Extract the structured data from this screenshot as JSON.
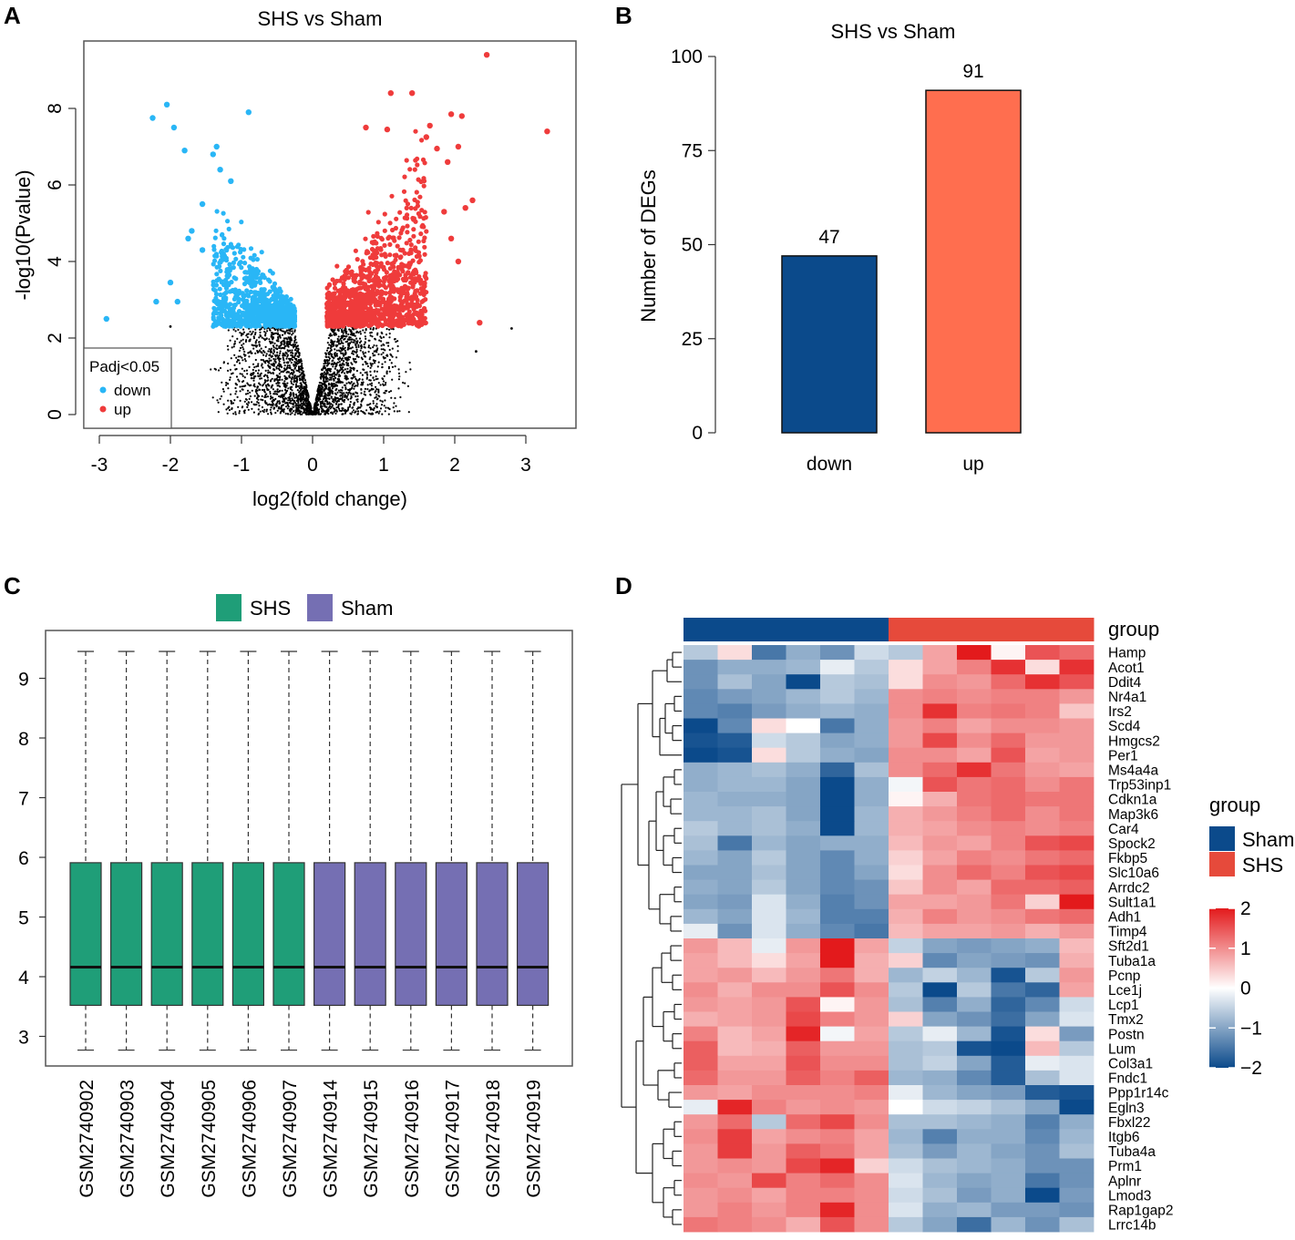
{
  "panels": {
    "A": "A",
    "B": "B",
    "C": "C",
    "D": "D"
  },
  "chart_data": [
    {
      "id": "A",
      "type": "scatter",
      "title": "SHS vs Sham",
      "xlabel": "log2(fold change)",
      "ylabel": "-log10(Pvalue)",
      "xlim": [
        -3.3,
        3.6
      ],
      "ylim": [
        -0.3,
        9.6
      ],
      "xticks": [
        -3,
        -2,
        -1,
        0,
        1,
        2,
        3
      ],
      "yticks": [
        0,
        2,
        4,
        6,
        8
      ],
      "legend": {
        "title": "Padj<0.05",
        "placement": "bottom-left",
        "entries": [
          {
            "label": "down",
            "color": "#29b6f6"
          },
          {
            "label": "up",
            "color": "#ef3b3b"
          }
        ]
      },
      "series": [
        {
          "name": "down",
          "color": "#29b6f6",
          "points": [
            [
              -2.9,
              2.5
            ],
            [
              -2.2,
              2.95
            ],
            [
              -1.9,
              2.95
            ],
            [
              -2.0,
              3.45
            ],
            [
              -2.25,
              7.75
            ],
            [
              -2.05,
              8.1
            ],
            [
              -1.95,
              7.5
            ],
            [
              -1.8,
              6.9
            ],
            [
              -1.55,
              5.5
            ],
            [
              -0.9,
              7.9
            ],
            [
              -1.35,
              7.0
            ],
            [
              -1.3,
              6.4
            ],
            [
              -1.15,
              6.1
            ],
            [
              -1.4,
              6.8
            ],
            [
              -1.7,
              4.8
            ],
            [
              -1.75,
              4.6
            ],
            [
              -1.55,
              4.3
            ]
          ]
        },
        {
          "name": "up",
          "color": "#ef3b3b",
          "points": [
            [
              2.45,
              9.4
            ],
            [
              3.3,
              7.4
            ],
            [
              1.1,
              8.4
            ],
            [
              1.4,
              8.4
            ],
            [
              1.95,
              7.85
            ],
            [
              2.1,
              7.8
            ],
            [
              2.05,
              7.0
            ],
            [
              0.75,
              7.5
            ],
            [
              1.05,
              7.45
            ],
            [
              1.65,
              7.55
            ],
            [
              1.6,
              7.25
            ],
            [
              1.75,
              6.95
            ],
            [
              1.9,
              6.6
            ],
            [
              2.25,
              5.6
            ],
            [
              2.15,
              5.4
            ],
            [
              1.85,
              5.3
            ],
            [
              2.05,
              4.0
            ],
            [
              1.95,
              4.6
            ],
            [
              2.35,
              2.4
            ],
            [
              1.5,
              2.4
            ]
          ]
        },
        {
          "name": "ns",
          "color": "#000000",
          "points": [
            [
              -2.0,
              2.3
            ],
            [
              2.8,
              2.25
            ],
            [
              2.3,
              1.65
            ]
          ]
        }
      ]
    },
    {
      "id": "B",
      "type": "bar",
      "title": "SHS vs Sham",
      "xlabel": "",
      "ylabel": "Number of DEGs",
      "categories": [
        "down",
        "up"
      ],
      "values": [
        47,
        91
      ],
      "value_labels": [
        "47",
        "91"
      ],
      "colors": [
        "#0b4a8b",
        "#ff6e4f"
      ],
      "ylim": [
        0,
        100
      ],
      "yticks": [
        0,
        25,
        50,
        75,
        100
      ]
    },
    {
      "id": "C",
      "type": "boxplot",
      "title": "",
      "legend": [
        {
          "label": "SHS",
          "color": "#1f9e78"
        },
        {
          "label": "Sham",
          "color": "#756fb3"
        }
      ],
      "ylim": [
        2.8,
        9.7
      ],
      "yticks": [
        3,
        4,
        5,
        6,
        7,
        8,
        9
      ],
      "samples": [
        "GSM2740902",
        "GSM2740903",
        "GSM2740904",
        "GSM2740905",
        "GSM2740906",
        "GSM2740907",
        "GSM2740914",
        "GSM2740915",
        "GSM2740916",
        "GSM2740917",
        "GSM2740918",
        "GSM2740919"
      ],
      "groups": [
        "SHS",
        "SHS",
        "SHS",
        "SHS",
        "SHS",
        "SHS",
        "Sham",
        "Sham",
        "Sham",
        "Sham",
        "Sham",
        "Sham"
      ],
      "stats": {
        "min": 2.77,
        "q1": 3.52,
        "median": 4.16,
        "q3": 5.91,
        "max": 9.45
      }
    },
    {
      "id": "D",
      "type": "heatmap",
      "annotation_title": "group",
      "legend_title": "group",
      "group_legend": [
        {
          "label": "Sham",
          "color": "#0b4a8b"
        },
        {
          "label": "SHS",
          "color": "#e64a3b"
        }
      ],
      "column_groups": [
        "Sham",
        "Sham",
        "Sham",
        "Sham",
        "Sham",
        "Sham",
        "SHS",
        "SHS",
        "SHS",
        "SHS",
        "SHS",
        "SHS"
      ],
      "colorbar_ticks": [
        2,
        1,
        0,
        -1,
        -2
      ],
      "colorbar_labels": [
        "2",
        "1",
        "0",
        "−1",
        "−2"
      ],
      "genes": [
        "Hamp",
        "Acot1",
        "Ddit4",
        "Nr4a1",
        "Irs2",
        "Scd4",
        "Hmgcs2",
        "Per1",
        "Ms4a4a",
        "Trp53inp1",
        "Cdkn1a",
        "Map3k6",
        "Car4",
        "Spock2",
        "Fkbp5",
        "Slc10a6",
        "Arrdc2",
        "Sult1a1",
        "Adh1",
        "Timp4",
        "Sft2d1",
        "Tuba1a",
        "Pcnp",
        "Lce1j",
        "Lcp1",
        "Tmx2",
        "Postn",
        "Lum",
        "Col3a1",
        "Fndc1",
        "Ppp1r14c",
        "Egln3",
        "Fbxl22",
        "Itgb6",
        "Tuba4a",
        "Prm1",
        "Aplnr",
        "Lmod3",
        "Rap1gap2",
        "Lrrc14b"
      ],
      "values": [
        [
          -0.6,
          0.3,
          -1.5,
          -0.9,
          -1.2,
          -0.4,
          -0.6,
          0.8,
          2.0,
          0.1,
          1.5,
          1.3
        ],
        [
          -1.2,
          -0.9,
          -0.9,
          -0.8,
          -0.2,
          -0.6,
          0.3,
          0.8,
          1.1,
          1.8,
          0.3,
          1.8
        ],
        [
          -1.2,
          -0.7,
          -1.0,
          -2.0,
          -0.6,
          -0.7,
          0.3,
          1.0,
          0.9,
          1.3,
          1.8,
          1.5
        ],
        [
          -1.3,
          -1.1,
          -1.0,
          -0.8,
          -0.6,
          -0.8,
          1.0,
          1.1,
          1.0,
          1.1,
          1.1,
          0.9
        ],
        [
          -1.3,
          -1.4,
          -1.1,
          -0.9,
          -0.8,
          -0.9,
          1.0,
          1.8,
          1.1,
          1.2,
          1.1,
          0.5
        ],
        [
          -2.0,
          -1.3,
          0.3,
          0.0,
          -1.5,
          -0.9,
          0.9,
          1.1,
          0.8,
          1.0,
          1.0,
          0.9
        ],
        [
          -1.9,
          -1.8,
          -0.4,
          -0.6,
          -1.0,
          -0.9,
          0.9,
          1.6,
          1.0,
          1.3,
          0.9,
          0.9
        ],
        [
          -2.0,
          -1.9,
          0.3,
          -0.6,
          -0.9,
          -1.0,
          1.0,
          1.0,
          0.8,
          1.5,
          0.8,
          0.9
        ],
        [
          -0.9,
          -0.8,
          -0.7,
          -0.9,
          -1.7,
          -0.7,
          1.0,
          1.3,
          1.8,
          1.2,
          0.9,
          0.8
        ],
        [
          -0.9,
          -0.8,
          -0.8,
          -1.0,
          -2.0,
          -0.9,
          -0.1,
          1.5,
          1.2,
          1.3,
          1.0,
          1.2
        ],
        [
          -0.8,
          -0.9,
          -0.9,
          -1.0,
          -2.0,
          -0.9,
          0.1,
          0.7,
          1.2,
          1.3,
          1.2,
          1.2
        ],
        [
          -0.8,
          -0.8,
          -0.7,
          -1.0,
          -2.0,
          -0.8,
          0.7,
          0.9,
          1.1,
          1.3,
          1.0,
          1.2
        ],
        [
          -0.6,
          -0.8,
          -0.7,
          -0.9,
          -2.0,
          -0.8,
          0.7,
          0.8,
          1.0,
          1.1,
          1.0,
          1.1
        ],
        [
          -0.7,
          -1.5,
          -0.8,
          -1.0,
          -0.9,
          -0.9,
          0.6,
          0.9,
          0.8,
          1.1,
          1.5,
          1.6
        ],
        [
          -0.8,
          -1.0,
          -0.6,
          -1.0,
          -1.3,
          -0.9,
          0.4,
          0.8,
          1.1,
          1.0,
          1.2,
          1.3
        ],
        [
          -1.0,
          -1.0,
          -0.7,
          -1.0,
          -1.3,
          -1.0,
          0.3,
          1.0,
          1.3,
          1.1,
          1.5,
          1.6
        ],
        [
          -0.9,
          -1.0,
          -0.6,
          -1.0,
          -1.3,
          -1.2,
          0.5,
          1.0,
          0.8,
          1.3,
          1.3,
          1.4
        ],
        [
          -1.0,
          -1.1,
          -0.3,
          -0.9,
          -1.4,
          -1.2,
          0.8,
          0.8,
          0.9,
          1.2,
          0.4,
          2.0
        ],
        [
          -0.8,
          -1.0,
          -0.3,
          -0.8,
          -1.4,
          -1.4,
          0.7,
          1.1,
          0.9,
          1.0,
          1.2,
          1.3
        ],
        [
          -0.2,
          -1.2,
          -0.3,
          -0.9,
          -1.3,
          -1.5,
          0.6,
          0.8,
          0.8,
          0.9,
          0.7,
          0.9
        ],
        [
          0.9,
          0.6,
          -0.2,
          0.9,
          2.0,
          0.8,
          -0.5,
          -1.0,
          -1.1,
          -1.0,
          -0.9,
          0.6
        ],
        [
          0.8,
          0.6,
          0.3,
          0.8,
          2.0,
          0.7,
          0.4,
          -1.3,
          -1.0,
          -1.1,
          -1.2,
          0.7
        ],
        [
          0.8,
          0.9,
          0.6,
          0.9,
          1.2,
          0.7,
          -0.8,
          -0.5,
          -0.8,
          -1.9,
          -0.6,
          0.9
        ],
        [
          1.0,
          0.7,
          1.0,
          1.0,
          1.5,
          1.0,
          -0.6,
          -2.0,
          -0.6,
          -1.5,
          -1.7,
          0.8
        ],
        [
          0.9,
          0.8,
          0.9,
          1.5,
          0.1,
          0.9,
          -0.7,
          -1.4,
          -0.9,
          -1.7,
          -1.3,
          -0.4
        ],
        [
          0.7,
          0.8,
          0.9,
          1.6,
          1.1,
          0.9,
          0.4,
          -1.0,
          -1.2,
          -1.6,
          -1.0,
          -0.3
        ],
        [
          1.1,
          0.6,
          0.8,
          1.9,
          -0.1,
          0.8,
          -0.6,
          -0.2,
          -0.8,
          -1.9,
          0.3,
          -1.1
        ],
        [
          1.4,
          0.6,
          0.7,
          1.4,
          0.9,
          0.9,
          -0.7,
          -0.6,
          -1.9,
          -2.0,
          0.6,
          -0.6
        ],
        [
          1.4,
          0.8,
          0.8,
          1.5,
          1.0,
          1.0,
          -0.7,
          -0.5,
          -1.0,
          -1.8,
          -0.2,
          -0.3
        ],
        [
          1.3,
          0.9,
          0.9,
          1.4,
          1.1,
          1.4,
          -0.8,
          -0.9,
          -1.3,
          -1.8,
          -0.7,
          -0.3
        ],
        [
          0.9,
          0.8,
          1.0,
          1.0,
          1.0,
          1.1,
          -0.2,
          -0.8,
          -1.0,
          -1.1,
          -1.8,
          -1.9
        ],
        [
          -0.2,
          1.9,
          1.1,
          0.9,
          1.0,
          0.9,
          0.0,
          -0.4,
          -0.5,
          -0.7,
          -1.0,
          -2.0
        ],
        [
          0.9,
          1.3,
          -0.6,
          1.3,
          1.6,
          1.0,
          -0.7,
          -0.7,
          -0.8,
          -0.9,
          -1.4,
          -0.9
        ],
        [
          1.0,
          1.7,
          0.8,
          1.0,
          1.1,
          0.8,
          -0.8,
          -1.4,
          -0.9,
          -0.9,
          -1.3,
          -0.8
        ],
        [
          0.9,
          1.7,
          0.9,
          1.4,
          1.2,
          0.8,
          -0.7,
          -1.1,
          -0.8,
          -1.0,
          -1.2,
          -0.7
        ],
        [
          0.9,
          1.0,
          0.9,
          1.6,
          1.9,
          0.4,
          -0.4,
          -0.7,
          -0.8,
          -0.9,
          -1.2,
          -1.2
        ],
        [
          1.0,
          0.9,
          1.6,
          1.1,
          1.3,
          1.0,
          -0.3,
          -0.8,
          -1.0,
          -0.9,
          -1.5,
          -1.2
        ],
        [
          0.9,
          1.0,
          0.8,
          1.1,
          1.1,
          1.0,
          -0.4,
          -0.7,
          -1.1,
          -0.9,
          -2.0,
          -1.1
        ],
        [
          0.9,
          1.1,
          0.9,
          1.1,
          1.9,
          1.0,
          -0.3,
          -0.9,
          -0.8,
          -1.1,
          -1.1,
          -1.2
        ],
        [
          1.2,
          1.1,
          1.0,
          0.7,
          1.5,
          1.0,
          -0.6,
          -1.0,
          -1.6,
          -0.8,
          -1.2,
          -0.7
        ]
      ]
    }
  ]
}
